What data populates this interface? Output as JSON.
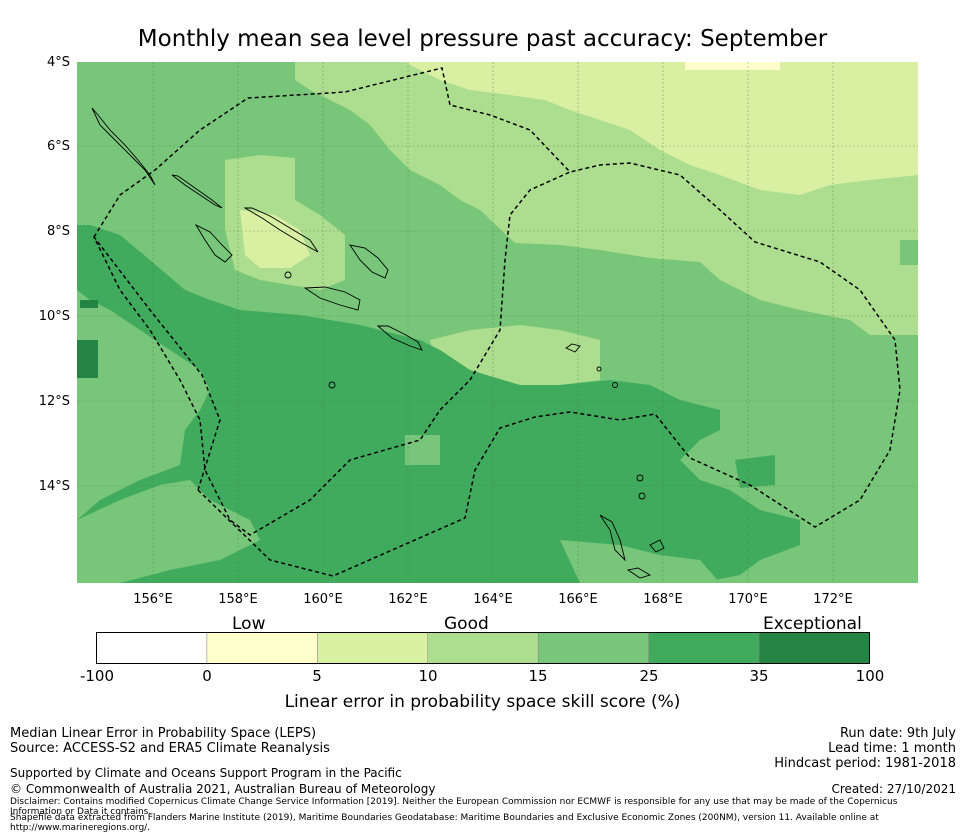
{
  "title": "Monthly mean sea level pressure past accuracy: September",
  "map": {
    "lat_labels": [
      "4°S",
      "6°S",
      "8°S",
      "10°S",
      "12°S",
      "14°S"
    ],
    "lon_labels": [
      "156°E",
      "158°E",
      "160°E",
      "162°E",
      "164°E",
      "166°E",
      "168°E",
      "170°E",
      "172°E"
    ]
  },
  "colorbar": {
    "category_labels": [
      "Low",
      "Good",
      "Exceptional"
    ],
    "ticks": [
      "-100",
      "0",
      "5",
      "10",
      "15",
      "25",
      "35",
      "100"
    ],
    "colors": [
      "#ffffff",
      "#ffffcc",
      "#d9f0a3",
      "#addd8e",
      "#78c679",
      "#41ab5d",
      "#238443"
    ],
    "title": "Linear error in probability space skill score (%)"
  },
  "footer": {
    "method": "Median Linear Error in Probability Space (LEPS)",
    "source": "Source: ACCESS-S2 and ERA5 Climate Reanalysis",
    "run_date": "Run date: 9th July",
    "lead_time": "Lead time: 1 month",
    "hindcast": "Hindcast period: 1981-2018",
    "support": "Supported by Climate and Oceans Support Program in the Pacific",
    "copyright": "© Commonwealth of Australia 2021, Australian Bureau of Meteorology",
    "created": "Created: 27/10/2021",
    "disclaimer": "Disclaimer: Contains modified Copernicus Climate Change Service Information [2019]. Neither the European Commission nor ECMWF is responsible for any use that may be made of the Copernicus Information or Data it contains.",
    "shapefile": "Shapefile data extracted from Flanders Marine Institute (2019), Maritime Boundaries Geodatabase: Maritime Boundaries and Exclusive Economic Zones (200NM), version 11. Available online at http://www.marineregions.org/."
  }
}
